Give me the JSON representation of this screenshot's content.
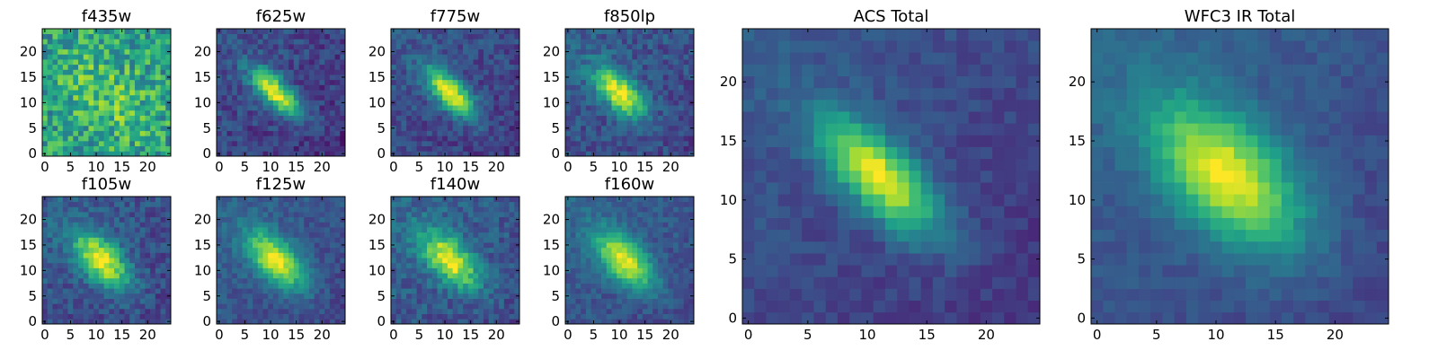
{
  "chart_data": {
    "type": "heatmap",
    "colormap": "viridis",
    "grid": false,
    "panels": [
      {
        "name": "f435w",
        "title": "f435w",
        "rows": 25,
        "cols": 25,
        "xlim": [
          -0.5,
          24.5
        ],
        "ylim": [
          -0.5,
          24.5
        ],
        "xticks": [
          0,
          5,
          10,
          15,
          20
        ],
        "yticks": [
          0,
          5,
          10,
          15,
          20
        ],
        "image_model": {
          "peak_x": 12,
          "peak_y": 11,
          "sigma_major": 8,
          "sigma_minor": 5,
          "angle_deg": -45,
          "peak_level": 0.72,
          "background_level": 0.55,
          "noise": 0.45,
          "gradient": 0.0
        }
      },
      {
        "name": "f625w",
        "title": "f625w",
        "rows": 25,
        "cols": 25,
        "xlim": [
          -0.5,
          24.5
        ],
        "ylim": [
          -0.5,
          24.5
        ],
        "xticks": [
          0,
          5,
          10,
          15,
          20
        ],
        "yticks": [
          0,
          5,
          10,
          15,
          20
        ],
        "image_model": {
          "peak_x": 11,
          "peak_y": 12,
          "sigma_major": 4.5,
          "sigma_minor": 1.8,
          "angle_deg": -45,
          "peak_level": 0.98,
          "background_level": 0.2,
          "noise": 0.22,
          "gradient": 0.12
        }
      },
      {
        "name": "f775w",
        "title": "f775w",
        "rows": 25,
        "cols": 25,
        "xlim": [
          -0.5,
          24.5
        ],
        "ylim": [
          -0.5,
          24.5
        ],
        "xticks": [
          0,
          5,
          10,
          15,
          20
        ],
        "yticks": [
          0,
          5,
          10,
          15,
          20
        ],
        "image_model": {
          "peak_x": 11,
          "peak_y": 12,
          "sigma_major": 4.5,
          "sigma_minor": 1.9,
          "angle_deg": -45,
          "peak_level": 0.98,
          "background_level": 0.22,
          "noise": 0.2,
          "gradient": 0.12
        }
      },
      {
        "name": "f850lp",
        "title": "f850lp",
        "rows": 25,
        "cols": 25,
        "xlim": [
          -0.5,
          24.5
        ],
        "ylim": [
          -0.5,
          24.5
        ],
        "xticks": [
          0,
          5,
          10,
          15,
          20
        ],
        "yticks": [
          0,
          5,
          10,
          15,
          20
        ],
        "image_model": {
          "peak_x": 10,
          "peak_y": 12,
          "sigma_major": 4.5,
          "sigma_minor": 2.2,
          "angle_deg": -45,
          "peak_level": 0.98,
          "background_level": 0.25,
          "noise": 0.22,
          "gradient": 0.1
        }
      },
      {
        "name": "f105w",
        "title": "f105w",
        "rows": 25,
        "cols": 25,
        "xlim": [
          -0.5,
          24.5
        ],
        "ylim": [
          -0.5,
          24.5
        ],
        "xticks": [
          0,
          5,
          10,
          15,
          20
        ],
        "yticks": [
          0,
          5,
          10,
          15,
          20
        ],
        "image_model": {
          "peak_x": 11,
          "peak_y": 12,
          "sigma_major": 5,
          "sigma_minor": 2.6,
          "angle_deg": -45,
          "peak_level": 0.98,
          "background_level": 0.25,
          "noise": 0.22,
          "gradient": 0.12
        }
      },
      {
        "name": "f125w",
        "title": "f125w",
        "rows": 25,
        "cols": 25,
        "xlim": [
          -0.5,
          24.5
        ],
        "ylim": [
          -0.5,
          24.5
        ],
        "xticks": [
          0,
          5,
          10,
          15,
          20
        ],
        "yticks": [
          0,
          5,
          10,
          15,
          20
        ],
        "image_model": {
          "peak_x": 11,
          "peak_y": 12,
          "sigma_major": 5,
          "sigma_minor": 2.6,
          "angle_deg": -45,
          "peak_level": 0.98,
          "background_level": 0.26,
          "noise": 0.16,
          "gradient": 0.12
        }
      },
      {
        "name": "f140w",
        "title": "f140w",
        "rows": 25,
        "cols": 25,
        "xlim": [
          -0.5,
          24.5
        ],
        "ylim": [
          -0.5,
          24.5
        ],
        "xticks": [
          0,
          5,
          10,
          15,
          20
        ],
        "yticks": [
          0,
          5,
          10,
          15,
          20
        ],
        "image_model": {
          "peak_x": 11,
          "peak_y": 12,
          "sigma_major": 5,
          "sigma_minor": 2.6,
          "angle_deg": -45,
          "peak_level": 0.98,
          "background_level": 0.28,
          "noise": 0.22,
          "gradient": 0.12
        }
      },
      {
        "name": "f160w",
        "title": "f160w",
        "rows": 25,
        "cols": 25,
        "xlim": [
          -0.5,
          24.5
        ],
        "ylim": [
          -0.5,
          24.5
        ],
        "xticks": [
          0,
          5,
          10,
          15,
          20
        ],
        "yticks": [
          0,
          5,
          10,
          15,
          20
        ],
        "image_model": {
          "peak_x": 11,
          "peak_y": 12,
          "sigma_major": 5,
          "sigma_minor": 2.6,
          "angle_deg": -45,
          "peak_level": 0.98,
          "background_level": 0.27,
          "noise": 0.16,
          "gradient": 0.12
        }
      },
      {
        "name": "ACS Total",
        "title": "ACS Total",
        "rows": 25,
        "cols": 25,
        "xlim": [
          -0.5,
          24.5
        ],
        "ylim": [
          -0.5,
          24.5
        ],
        "xticks": [
          0,
          5,
          10,
          15,
          20
        ],
        "yticks": [
          0,
          5,
          10,
          15,
          20
        ],
        "image_model": {
          "peak_x": 11,
          "peak_y": 12,
          "sigma_major": 4.5,
          "sigma_minor": 1.9,
          "angle_deg": -45,
          "peak_level": 0.98,
          "background_level": 0.22,
          "noise": 0.12,
          "gradient": 0.14
        }
      },
      {
        "name": "WFC3 IR Total",
        "title": "WFC3 IR Total",
        "rows": 25,
        "cols": 25,
        "xlim": [
          -0.5,
          24.5
        ],
        "ylim": [
          -0.5,
          24.5
        ],
        "xticks": [
          0,
          5,
          10,
          15,
          20
        ],
        "yticks": [
          0,
          5,
          10,
          15,
          20
        ],
        "image_model": {
          "peak_x": 11,
          "peak_y": 12,
          "sigma_major": 5.5,
          "sigma_minor": 3,
          "angle_deg": -45,
          "peak_level": 0.98,
          "background_level": 0.26,
          "noise": 0.1,
          "gradient": 0.14
        }
      }
    ]
  }
}
